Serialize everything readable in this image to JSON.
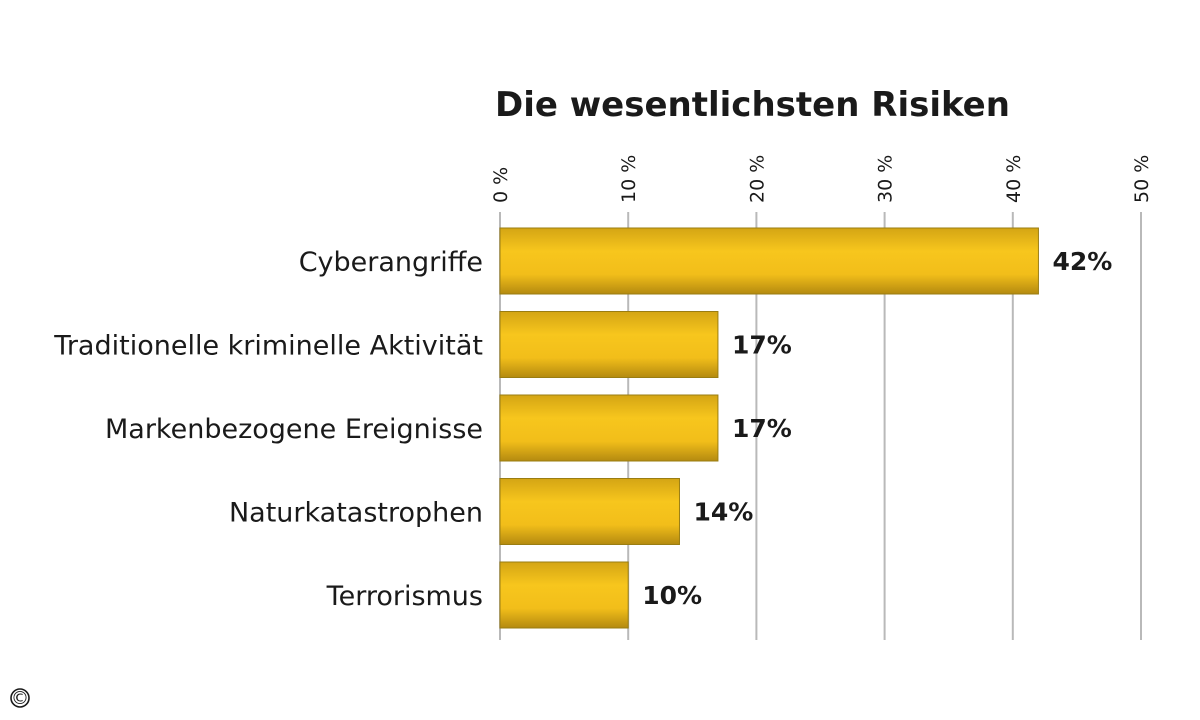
{
  "chart_data": {
    "type": "bar",
    "orientation": "horizontal",
    "title": "Die wesentlichsten Risiken",
    "categories": [
      "Cyberangriffe",
      "Traditionelle kriminelle Aktivität",
      "Markenbezogene Ereignisse",
      "Naturkatastrophen",
      "Terrorismus"
    ],
    "values": [
      42,
      17,
      17,
      14,
      10
    ],
    "value_labels": [
      "42%",
      "17%",
      "17%",
      "14%",
      "10%"
    ],
    "xlim": [
      0,
      50
    ],
    "ticks": [
      0,
      10,
      20,
      30,
      40,
      50
    ],
    "tick_labels": [
      "0 %",
      "10 %",
      "20 %",
      "30 %",
      "40 %",
      "50 %"
    ],
    "grid": true,
    "legend": "none",
    "bar_color": "#f2be1a"
  },
  "footer": {
    "copyright_symbol": "©"
  }
}
